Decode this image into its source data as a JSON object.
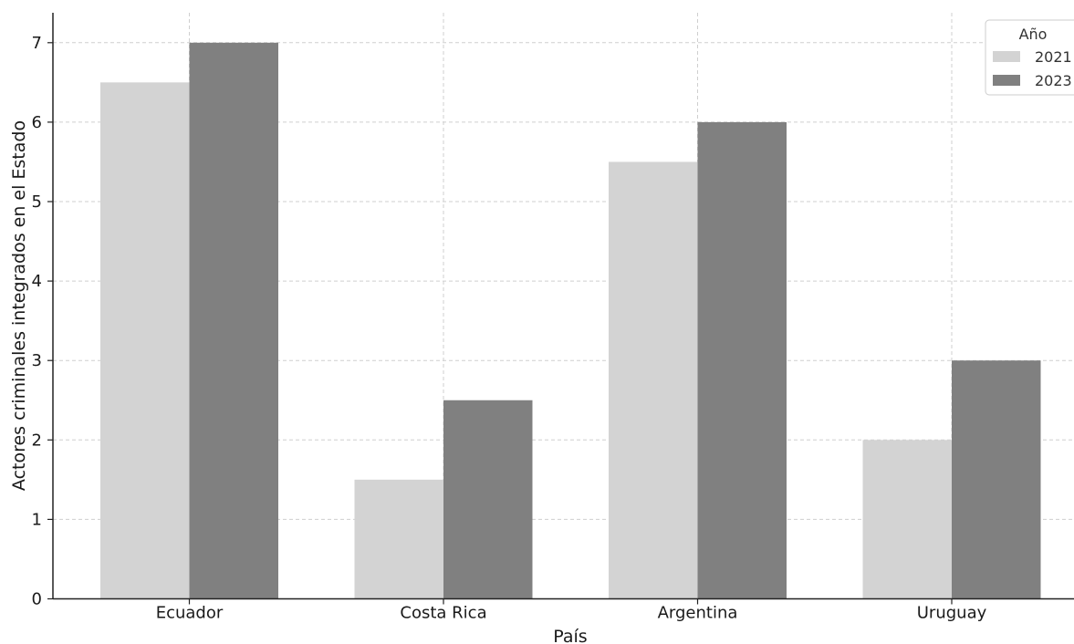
{
  "chart_data": {
    "type": "bar",
    "title": "",
    "xlabel": "País",
    "ylabel": "Actores criminales integrados en el Estado",
    "categories": [
      "Ecuador",
      "Costa Rica",
      "Argentina",
      "Uruguay"
    ],
    "series": [
      {
        "name": "2021",
        "values": [
          6.5,
          1.5,
          5.5,
          2.0
        ],
        "color": "#d3d3d3"
      },
      {
        "name": "2023",
        "values": [
          7.0,
          2.5,
          6.0,
          3.0
        ],
        "color": "#808080"
      }
    ],
    "yticks": [
      "0",
      "1",
      "2",
      "3",
      "4",
      "5",
      "6",
      "7"
    ],
    "ylim": [
      0,
      7.35
    ],
    "grid": true,
    "legend": {
      "title": "Año",
      "position": "top-right"
    }
  }
}
